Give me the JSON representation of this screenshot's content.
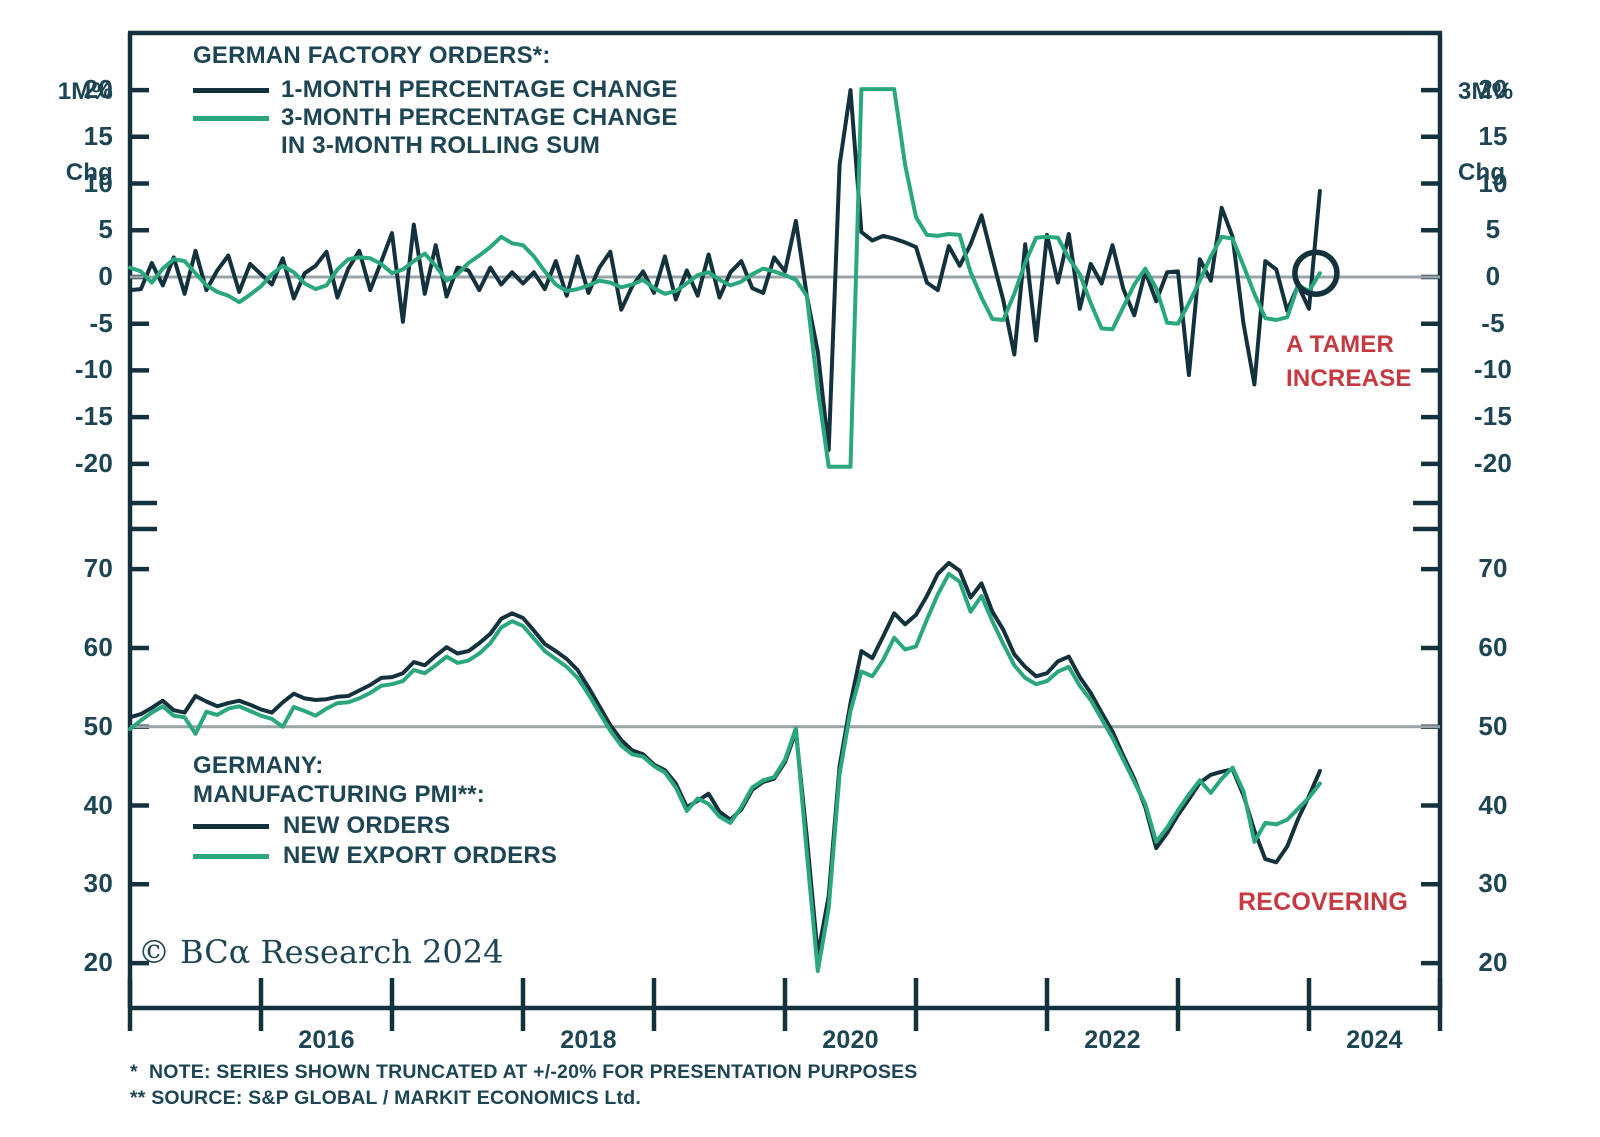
{
  "figure": {
    "copyright": "© BCα Research 2024",
    "footnote1": "*  NOTE: SERIES SHOWN TRUNCATED AT +/-20% FOR PRESENTATION PURPOSES",
    "footnote2": "** SOURCE: S&P GLOBAL / MARKIT ECONOMICS Ltd.",
    "colors": {
      "navy": "#14323d",
      "green": "#2aa77c",
      "red": "#c53a40",
      "gray": "#99a3a8",
      "text": "#1d4553"
    }
  },
  "chart_data": [
    {
      "id": "german-factory-orders",
      "type": "line",
      "title": "GERMAN FACTORY ORDERS*:",
      "left_axis_title": {
        "line1": "1M%",
        "line2": "Chg"
      },
      "right_axis_title": {
        "line1": "3M%",
        "line2": "Chg"
      },
      "legend": {
        "item1": "1-MONTH PERCENTAGE CHANGE",
        "item2_line1": "3-MONTH PERCENTAGE CHANGE",
        "item2_line2": "IN 3-MONTH ROLLING SUM"
      },
      "annotation": {
        "line1": "A TAMER",
        "line2": "INCREASE"
      },
      "note": "SERIES SHOWN TRUNCATED AT +/-20%",
      "y_ticks": [
        20,
        15,
        10,
        5,
        0,
        -5,
        -10,
        -15,
        -20
      ],
      "ylim": [
        -24.4,
        26.0
      ],
      "ref_line": 0,
      "x_start": "2015-01",
      "frequency": "monthly",
      "circle_last_point": {
        "series": 1
      },
      "series": [
        {
          "name": "1-MONTH PERCENTAGE CHANGE",
          "color": "#14323d",
          "values": [
            -1.4,
            -1.3,
            1.5,
            -0.9,
            2.1,
            -1.8,
            2.8,
            -1.4,
            0.7,
            2.3,
            -1.6,
            1.4,
            0.3,
            -0.8,
            2.0,
            -2.3,
            0.4,
            1.2,
            2.7,
            -2.2,
            0.9,
            2.8,
            -1.4,
            1.6,
            4.7,
            -4.8,
            5.6,
            -1.8,
            3.4,
            -2.1,
            1.0,
            0.7,
            -1.4,
            1.0,
            -0.8,
            0.5,
            -0.7,
            0.5,
            -1.3,
            1.7,
            -2.0,
            2.2,
            -1.7,
            1.0,
            2.7,
            -3.5,
            -1.0,
            0.6,
            -1.7,
            2.2,
            -2.4,
            0.7,
            -2.0,
            2.4,
            -2.2,
            0.5,
            1.7,
            -1.2,
            -1.7,
            2.1,
            0.6,
            6.0,
            -2.0,
            -8.0,
            -18.5,
            12.0,
            20.0,
            4.8,
            3.9,
            4.4,
            4.1,
            3.7,
            3.2,
            -0.6,
            -1.4,
            3.3,
            1.2,
            3.5,
            6.6,
            2.0,
            -2.5,
            -8.3,
            3.5,
            -6.8,
            4.5,
            -0.6,
            4.6,
            -3.4,
            1.4,
            -0.7,
            3.4,
            -1.3,
            -4.1,
            0.6,
            -2.6,
            0.5,
            0.6,
            -10.5,
            1.9,
            -0.4,
            7.4,
            4.3,
            -5.0,
            -11.5,
            1.7,
            0.8,
            -3.6,
            -0.9,
            -3.4,
            9.2
          ]
        },
        {
          "name": "3-MONTH PERCENTAGE CHANGE IN 3-MONTH ROLLING SUM",
          "color": "#2aa77c",
          "values": [
            1.0,
            0.6,
            -0.6,
            0.9,
            1.9,
            1.7,
            0.4,
            -0.9,
            -1.6,
            -2.0,
            -2.7,
            -1.9,
            -1.0,
            0.3,
            1.2,
            0.5,
            -0.7,
            -1.3,
            -0.9,
            0.8,
            1.9,
            2.1,
            2.0,
            1.4,
            0.4,
            0.8,
            1.7,
            2.5,
            1.2,
            -0.4,
            0.3,
            1.5,
            2.3,
            3.2,
            4.3,
            3.6,
            3.4,
            2.2,
            0.6,
            -0.8,
            -1.5,
            -1.3,
            -0.9,
            -0.4,
            -0.6,
            -1.1,
            -0.8,
            -0.3,
            -1.2,
            -1.8,
            -1.5,
            -0.7,
            0.2,
            0.5,
            -0.3,
            -0.9,
            -0.5,
            0.3,
            0.9,
            0.6,
            0.2,
            -0.3,
            -2.0,
            -12.0,
            -20.3,
            -20.3,
            -20.3,
            20.1,
            20.1,
            20.1,
            20.1,
            12.0,
            6.4,
            4.5,
            4.4,
            4.6,
            4.5,
            0.5,
            -2.2,
            -4.5,
            -4.6,
            -1.8,
            1.5,
            4.2,
            4.3,
            4.2,
            2.0,
            0.3,
            -2.8,
            -5.5,
            -5.6,
            -3.2,
            -0.8,
            0.9,
            -1.2,
            -4.9,
            -5.0,
            -2.8,
            -0.4,
            2.2,
            4.3,
            4.1,
            1.2,
            -1.8,
            -4.4,
            -4.6,
            -4.3,
            -0.9,
            -1.5,
            0.4
          ]
        }
      ]
    },
    {
      "id": "germany-manufacturing-pmi",
      "type": "line",
      "title_line1": "GERMANY:",
      "title_line2": "MANUFACTURING PMI**:",
      "legend": {
        "item1": "NEW ORDERS",
        "item2": "NEW EXPORT ORDERS"
      },
      "annotation": {
        "line1": "RECOVERING"
      },
      "y_ticks": [
        70,
        60,
        50,
        40,
        30,
        20
      ],
      "ylim": [
        14.3,
        75.1
      ],
      "ref_line": 50,
      "x_start": "2015-01",
      "frequency": "monthly",
      "x_year_ticks": [
        2015,
        2016,
        2017,
        2018,
        2019,
        2020,
        2021,
        2022,
        2023,
        2024,
        2025
      ],
      "x_year_labels": [
        2016,
        2018,
        2020,
        2022,
        2024
      ],
      "series": [
        {
          "name": "NEW ORDERS",
          "color": "#14323d",
          "values": [
            51.2,
            51.6,
            52.4,
            53.3,
            52.1,
            51.8,
            53.9,
            53.2,
            52.6,
            53.0,
            53.3,
            52.8,
            52.2,
            51.8,
            53.1,
            54.2,
            53.6,
            53.4,
            53.5,
            53.8,
            53.9,
            54.6,
            55.3,
            56.2,
            56.3,
            56.8,
            58.2,
            57.8,
            59.0,
            60.1,
            59.3,
            59.6,
            60.6,
            61.8,
            63.7,
            64.4,
            63.8,
            62.2,
            60.5,
            59.6,
            58.6,
            57.2,
            55.0,
            52.6,
            50.2,
            48.3,
            47.0,
            46.5,
            45.2,
            44.5,
            42.8,
            39.8,
            40.6,
            41.5,
            39.2,
            38.2,
            39.5,
            42.0,
            43.0,
            43.4,
            45.5,
            49.4,
            36.0,
            21.0,
            28.5,
            45.0,
            53.0,
            59.6,
            58.7,
            61.5,
            64.4,
            63.0,
            64.2,
            66.6,
            69.4,
            70.8,
            69.8,
            66.4,
            68.2,
            64.6,
            62.3,
            59.2,
            57.6,
            56.4,
            56.8,
            58.3,
            58.9,
            56.3,
            54.3,
            51.8,
            49.4,
            46.3,
            43.4,
            39.8,
            34.6,
            36.5,
            38.8,
            40.8,
            42.9,
            43.9,
            44.3,
            44.6,
            41.3,
            36.8,
            33.2,
            32.8,
            34.8,
            38.3,
            41.2,
            44.4
          ]
        },
        {
          "name": "NEW EXPORT ORDERS",
          "color": "#2aa77c",
          "values": [
            49.7,
            50.8,
            51.8,
            52.6,
            51.4,
            51.2,
            49.1,
            51.9,
            51.5,
            52.3,
            52.6,
            52.0,
            51.4,
            51.0,
            50.0,
            52.5,
            52.0,
            51.4,
            52.3,
            53.0,
            53.1,
            53.6,
            54.3,
            55.2,
            55.4,
            55.8,
            57.2,
            56.8,
            57.8,
            58.9,
            58.1,
            58.4,
            59.3,
            60.6,
            62.6,
            63.4,
            62.8,
            61.2,
            59.6,
            58.6,
            57.6,
            56.2,
            54.1,
            51.8,
            49.5,
            47.6,
            46.5,
            46.2,
            45.0,
            44.2,
            42.3,
            39.3,
            40.9,
            40.2,
            38.6,
            37.8,
            39.8,
            42.3,
            43.2,
            43.6,
            45.8,
            49.8,
            34.0,
            19.0,
            27.0,
            44.0,
            52.0,
            57.0,
            56.4,
            58.5,
            61.3,
            59.8,
            60.2,
            63.6,
            66.8,
            69.4,
            68.4,
            64.6,
            66.6,
            63.4,
            60.5,
            57.8,
            56.2,
            55.4,
            55.8,
            57.0,
            57.6,
            55.2,
            53.4,
            51.0,
            48.6,
            45.8,
            43.0,
            40.2,
            35.4,
            37.2,
            39.4,
            41.4,
            43.2,
            41.6,
            43.4,
            44.8,
            41.8,
            35.4,
            37.8,
            37.6,
            38.2,
            39.6,
            41.0,
            42.8
          ]
        }
      ]
    }
  ]
}
